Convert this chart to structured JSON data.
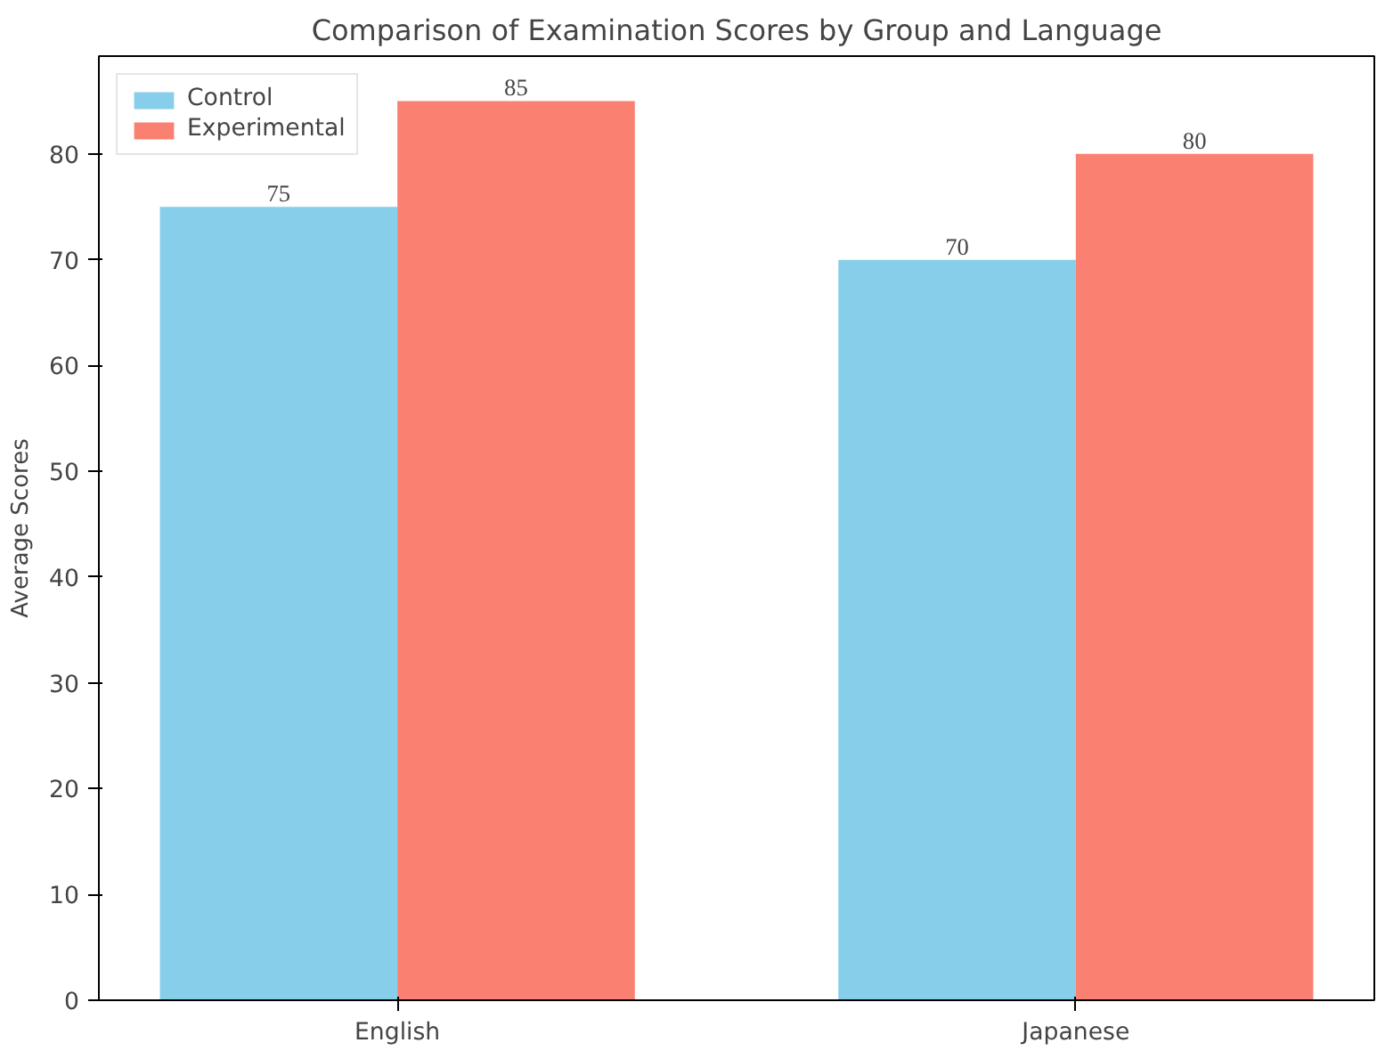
{
  "chart_data": {
    "type": "bar",
    "title": "Comparison of Examination Scores by Group and Language",
    "ylabel": "Average Scores",
    "categories": [
      "English",
      "Japanese"
    ],
    "series": [
      {
        "name": "Control",
        "color": "#87ceeb",
        "values": [
          75,
          70
        ]
      },
      {
        "name": "Experimental",
        "color": "#fa8072",
        "values": [
          85,
          80
        ]
      }
    ],
    "ylim": [
      0,
      89.25
    ],
    "yticks": [
      0,
      10,
      20,
      30,
      40,
      50,
      60,
      70,
      80
    ],
    "grid": false,
    "legend": "top left",
    "data_labels": true
  }
}
